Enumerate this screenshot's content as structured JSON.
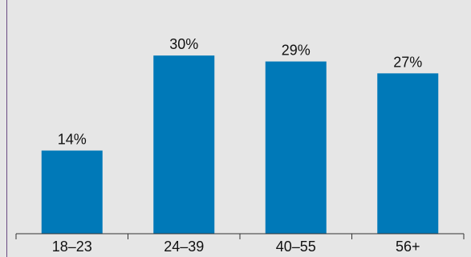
{
  "chart_data": {
    "type": "bar",
    "categories": [
      "18–23",
      "24–39",
      "40–55",
      "56+"
    ],
    "values": [
      14,
      30,
      29,
      27
    ],
    "value_labels": [
      "14%",
      "30%",
      "29%",
      "27%"
    ],
    "title": "",
    "xlabel": "",
    "ylabel": "",
    "ylim": [
      0,
      38
    ],
    "grid": false,
    "legend": "none",
    "colors": {
      "bar": "#0079b8",
      "background": "#e6e6e6",
      "frame": "#6a4b82"
    }
  }
}
